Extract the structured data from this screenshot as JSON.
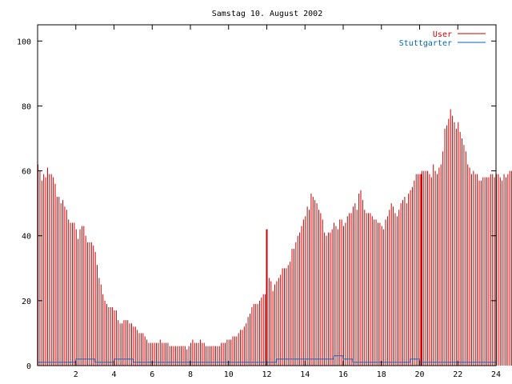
{
  "chart_data": {
    "type": "bar",
    "title": "Samstag 10. August 2002",
    "xlabel": "",
    "ylabel": "",
    "xlim": [
      0,
      24
    ],
    "ylim": [
      0,
      105
    ],
    "x_ticks": [
      2,
      4,
      6,
      8,
      10,
      12,
      14,
      16,
      18,
      20,
      22,
      24
    ],
    "y_ticks": [
      0,
      20,
      40,
      60,
      80,
      100
    ],
    "legend_position": "top-right",
    "grid": false,
    "colors": {
      "user": "#cc0000",
      "stuttgarter": "#0066bb",
      "axis": "#000000"
    },
    "legend": [
      {
        "name": "User",
        "color": "#cc0000"
      },
      {
        "name": "Stuttgarter",
        "color": "#0066bb"
      }
    ],
    "series": [
      {
        "name": "User",
        "x_start": 0,
        "x_step": 0.1,
        "values": [
          62,
          60,
          57,
          59,
          58,
          61,
          59,
          59,
          58,
          56,
          52,
          52,
          50,
          51,
          49,
          48,
          45,
          44,
          44,
          44,
          42,
          39,
          42,
          43,
          43,
          40,
          38,
          38,
          38,
          37,
          35,
          31,
          27,
          25,
          22,
          20,
          19,
          18,
          18,
          18,
          17,
          17,
          14,
          13,
          13,
          14,
          14,
          14,
          13,
          13,
          12,
          12,
          11,
          10,
          10,
          10,
          9,
          8,
          7,
          7,
          7,
          7,
          7,
          7,
          8,
          7,
          7,
          7,
          7,
          6,
          6,
          6,
          6,
          6,
          6,
          6,
          6,
          6,
          5,
          6,
          7,
          8,
          7,
          7,
          7,
          8,
          7,
          7,
          6,
          6,
          6,
          6,
          6,
          6,
          6,
          6,
          7,
          7,
          7,
          8,
          8,
          8,
          9,
          9,
          9,
          10,
          11,
          11,
          12,
          13,
          15,
          16,
          18,
          19,
          19,
          19,
          20,
          21,
          22,
          22,
          25,
          27,
          26,
          23,
          25,
          26,
          27,
          28,
          30,
          30,
          30,
          31,
          32,
          36,
          36,
          38,
          40,
          41,
          43,
          45,
          46,
          49,
          48,
          53,
          52,
          51,
          50,
          48,
          47,
          45,
          41,
          40,
          41,
          41,
          42,
          44,
          43,
          42,
          45,
          45,
          43,
          44,
          46,
          47,
          47,
          49,
          50,
          48,
          53,
          54,
          51,
          48,
          47,
          47,
          47,
          46,
          45,
          45,
          44,
          44,
          43,
          42,
          45,
          46,
          48,
          50,
          49,
          47,
          46,
          48,
          50,
          51,
          52,
          50,
          53,
          54,
          55,
          57,
          59,
          59,
          59,
          60,
          60,
          60,
          60,
          59,
          58,
          62,
          60,
          59,
          61,
          62,
          66,
          73,
          74,
          76,
          79,
          77,
          75,
          73,
          75,
          72,
          70,
          68,
          66,
          62,
          61,
          59,
          60,
          59,
          59,
          57,
          57,
          58,
          58,
          58,
          58,
          59,
          59,
          58,
          59,
          59,
          58,
          57,
          59,
          58,
          59,
          60,
          60,
          60,
          61,
          61,
          61,
          62,
          58,
          57,
          58,
          62,
          63,
          63,
          62,
          62,
          64,
          65,
          63,
          65,
          66,
          64,
          62,
          63,
          62,
          63,
          59,
          58,
          56,
          55
        ],
        "spikes": [
          {
            "x": 12.0,
            "value": 42
          },
          {
            "x": 20.1,
            "value": 59
          }
        ]
      },
      {
        "name": "Stuttgarter",
        "x_start": 0,
        "x_step": 0.5,
        "values": [
          1,
          1,
          1,
          1,
          2,
          2,
          1,
          1,
          2,
          2,
          1,
          1,
          1,
          1,
          1,
          1,
          1,
          1,
          1,
          1,
          1,
          1,
          1,
          1,
          1,
          2,
          2,
          2,
          2,
          2,
          2,
          3,
          2,
          1,
          1,
          1,
          1,
          1,
          1,
          2,
          1,
          1,
          1,
          1,
          1,
          1,
          1,
          1,
          1
        ]
      }
    ]
  }
}
